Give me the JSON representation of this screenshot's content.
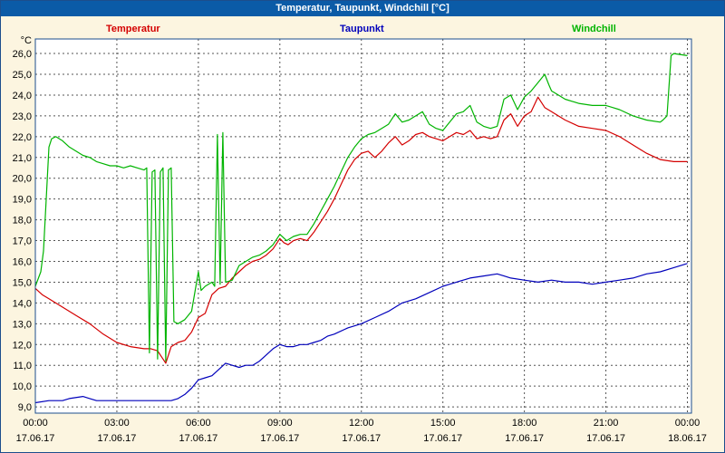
{
  "header": {
    "title": "Temperatur, Taupunkt, Windchill [°C]"
  },
  "colors": {
    "titlebar": "#0b5ba7",
    "background": "#fcf5e0",
    "plot_background": "#ffffff",
    "frame": "#1c4e8c",
    "grid": "#555555"
  },
  "chart_data": {
    "type": "line",
    "title": "Temperatur, Taupunkt, Windchill [°C]",
    "y_unit": "°C",
    "grid": true,
    "legend_position": "top",
    "ylim": [
      8.7,
      26.7
    ],
    "xlim_hours": [
      0,
      24.15
    ],
    "y_ticks": [
      26,
      25,
      24,
      23,
      22,
      21,
      20,
      19,
      18,
      17,
      16,
      15,
      14,
      13,
      12,
      11,
      10,
      9
    ],
    "x_ticks": [
      {
        "h": 0,
        "time": "00:00",
        "date": "17.06.17"
      },
      {
        "h": 3,
        "time": "03:00",
        "date": "17.06.17"
      },
      {
        "h": 6,
        "time": "06:00",
        "date": "17.06.17"
      },
      {
        "h": 9,
        "time": "09:00",
        "date": "17.06.17"
      },
      {
        "h": 12,
        "time": "12:00",
        "date": "17.06.17"
      },
      {
        "h": 15,
        "time": "15:00",
        "date": "17.06.17"
      },
      {
        "h": 18,
        "time": "18:00",
        "date": "17.06.17"
      },
      {
        "h": 21,
        "time": "21:00",
        "date": "17.06.17"
      },
      {
        "h": 24,
        "time": "00:00",
        "date": "18.06.17"
      }
    ],
    "series": [
      {
        "name": "Temperatur",
        "color": "#d40000",
        "points": [
          [
            0,
            14.7
          ],
          [
            0.25,
            14.4
          ],
          [
            0.5,
            14.2
          ],
          [
            0.75,
            14.0
          ],
          [
            1,
            13.8
          ],
          [
            1.5,
            13.4
          ],
          [
            2,
            13.0
          ],
          [
            2.5,
            12.5
          ],
          [
            3,
            12.1
          ],
          [
            3.5,
            11.9
          ],
          [
            4,
            11.8
          ],
          [
            4.25,
            11.8
          ],
          [
            4.5,
            11.7
          ],
          [
            4.6,
            11.5
          ],
          [
            4.75,
            11.2
          ],
          [
            4.8,
            11.1
          ],
          [
            5,
            11.9
          ],
          [
            5.25,
            12.1
          ],
          [
            5.5,
            12.2
          ],
          [
            5.75,
            12.6
          ],
          [
            6,
            13.3
          ],
          [
            6.25,
            13.5
          ],
          [
            6.5,
            14.4
          ],
          [
            6.75,
            14.7
          ],
          [
            7,
            14.8
          ],
          [
            7.25,
            15.2
          ],
          [
            7.5,
            15.5
          ],
          [
            7.75,
            15.8
          ],
          [
            8,
            16.0
          ],
          [
            8.25,
            16.1
          ],
          [
            8.5,
            16.3
          ],
          [
            8.75,
            16.6
          ],
          [
            9,
            17.1
          ],
          [
            9.15,
            16.9
          ],
          [
            9.3,
            16.8
          ],
          [
            9.5,
            17.0
          ],
          [
            9.75,
            17.1
          ],
          [
            10,
            17.0
          ],
          [
            10.25,
            17.4
          ],
          [
            10.5,
            17.9
          ],
          [
            10.75,
            18.4
          ],
          [
            11,
            19.0
          ],
          [
            11.25,
            19.7
          ],
          [
            11.5,
            20.4
          ],
          [
            11.75,
            20.9
          ],
          [
            12,
            21.2
          ],
          [
            12.25,
            21.3
          ],
          [
            12.5,
            21.0
          ],
          [
            12.75,
            21.3
          ],
          [
            13,
            21.7
          ],
          [
            13.25,
            22.0
          ],
          [
            13.5,
            21.6
          ],
          [
            13.75,
            21.8
          ],
          [
            14,
            22.1
          ],
          [
            14.25,
            22.2
          ],
          [
            14.5,
            22.0
          ],
          [
            14.75,
            21.9
          ],
          [
            15,
            21.8
          ],
          [
            15.25,
            22.0
          ],
          [
            15.5,
            22.2
          ],
          [
            15.75,
            22.1
          ],
          [
            16,
            22.3
          ],
          [
            16.25,
            21.9
          ],
          [
            16.5,
            22.0
          ],
          [
            16.75,
            21.9
          ],
          [
            17,
            22.0
          ],
          [
            17.25,
            22.8
          ],
          [
            17.5,
            23.1
          ],
          [
            17.75,
            22.5
          ],
          [
            18,
            23.0
          ],
          [
            18.25,
            23.2
          ],
          [
            18.5,
            23.9
          ],
          [
            18.65,
            23.6
          ],
          [
            18.75,
            23.4
          ],
          [
            19,
            23.2
          ],
          [
            19.25,
            23.0
          ],
          [
            19.5,
            22.8
          ],
          [
            20,
            22.5
          ],
          [
            20.5,
            22.4
          ],
          [
            21,
            22.3
          ],
          [
            21.5,
            22.0
          ],
          [
            22,
            21.6
          ],
          [
            22.5,
            21.2
          ],
          [
            23,
            20.9
          ],
          [
            23.5,
            20.8
          ],
          [
            24,
            20.8
          ]
        ]
      },
      {
        "name": "Taupunkt",
        "color": "#0000bb",
        "points": [
          [
            0,
            9.2
          ],
          [
            0.5,
            9.3
          ],
          [
            1,
            9.3
          ],
          [
            1.25,
            9.4
          ],
          [
            1.75,
            9.5
          ],
          [
            2,
            9.4
          ],
          [
            2.25,
            9.3
          ],
          [
            3,
            9.3
          ],
          [
            3.5,
            9.3
          ],
          [
            4,
            9.3
          ],
          [
            4.5,
            9.3
          ],
          [
            5,
            9.3
          ],
          [
            5.25,
            9.4
          ],
          [
            5.5,
            9.6
          ],
          [
            5.75,
            9.9
          ],
          [
            6,
            10.3
          ],
          [
            6.25,
            10.4
          ],
          [
            6.5,
            10.5
          ],
          [
            6.75,
            10.8
          ],
          [
            7,
            11.1
          ],
          [
            7.25,
            11.0
          ],
          [
            7.5,
            10.9
          ],
          [
            7.75,
            11.0
          ],
          [
            8,
            11.0
          ],
          [
            8.25,
            11.2
          ],
          [
            8.5,
            11.5
          ],
          [
            8.75,
            11.8
          ],
          [
            9,
            12.0
          ],
          [
            9.25,
            11.9
          ],
          [
            9.5,
            11.9
          ],
          [
            9.75,
            12.0
          ],
          [
            10,
            12.0
          ],
          [
            10.25,
            12.1
          ],
          [
            10.5,
            12.2
          ],
          [
            10.75,
            12.4
          ],
          [
            11,
            12.5
          ],
          [
            11.5,
            12.8
          ],
          [
            12,
            13.0
          ],
          [
            12.5,
            13.3
          ],
          [
            13,
            13.6
          ],
          [
            13.5,
            14.0
          ],
          [
            14,
            14.2
          ],
          [
            14.5,
            14.5
          ],
          [
            15,
            14.8
          ],
          [
            15.25,
            14.9
          ],
          [
            15.5,
            15.0
          ],
          [
            16,
            15.2
          ],
          [
            16.5,
            15.3
          ],
          [
            17,
            15.4
          ],
          [
            17.25,
            15.3
          ],
          [
            17.5,
            15.2
          ],
          [
            18,
            15.1
          ],
          [
            18.5,
            15.0
          ],
          [
            19,
            15.1
          ],
          [
            19.5,
            15.0
          ],
          [
            20,
            15.0
          ],
          [
            20.5,
            14.9
          ],
          [
            21,
            15.0
          ],
          [
            21.5,
            15.1
          ],
          [
            22,
            15.2
          ],
          [
            22.5,
            15.4
          ],
          [
            23,
            15.5
          ],
          [
            23.5,
            15.7
          ],
          [
            24,
            15.9
          ]
        ]
      },
      {
        "name": "Windchill",
        "color": "#00b400",
        "points": [
          [
            0,
            14.8
          ],
          [
            0.2,
            15.5
          ],
          [
            0.3,
            16.5
          ],
          [
            0.4,
            19.0
          ],
          [
            0.5,
            21.5
          ],
          [
            0.6,
            21.9
          ],
          [
            0.75,
            22.0
          ],
          [
            1,
            21.8
          ],
          [
            1.25,
            21.5
          ],
          [
            1.5,
            21.3
          ],
          [
            1.75,
            21.1
          ],
          [
            2,
            21.0
          ],
          [
            2.25,
            20.8
          ],
          [
            2.5,
            20.7
          ],
          [
            2.75,
            20.6
          ],
          [
            3,
            20.6
          ],
          [
            3.25,
            20.5
          ],
          [
            3.5,
            20.6
          ],
          [
            3.75,
            20.5
          ],
          [
            4,
            20.4
          ],
          [
            4.1,
            20.5
          ],
          [
            4.2,
            11.6
          ],
          [
            4.3,
            20.3
          ],
          [
            4.4,
            20.4
          ],
          [
            4.5,
            11.3
          ],
          [
            4.6,
            20.3
          ],
          [
            4.7,
            20.5
          ],
          [
            4.8,
            11.2
          ],
          [
            4.9,
            20.4
          ],
          [
            5,
            20.5
          ],
          [
            5.1,
            13.1
          ],
          [
            5.25,
            13.0
          ],
          [
            5.5,
            13.2
          ],
          [
            5.75,
            13.6
          ],
          [
            6,
            15.5
          ],
          [
            6.1,
            14.6
          ],
          [
            6.25,
            14.8
          ],
          [
            6.5,
            15.0
          ],
          [
            6.6,
            14.8
          ],
          [
            6.7,
            22.1
          ],
          [
            6.8,
            14.9
          ],
          [
            6.9,
            22.2
          ],
          [
            7,
            15.0
          ],
          [
            7.25,
            15.1
          ],
          [
            7.5,
            15.8
          ],
          [
            7.75,
            16.0
          ],
          [
            8,
            16.2
          ],
          [
            8.25,
            16.3
          ],
          [
            8.5,
            16.5
          ],
          [
            8.75,
            16.8
          ],
          [
            9,
            17.3
          ],
          [
            9.25,
            17.0
          ],
          [
            9.5,
            17.2
          ],
          [
            9.75,
            17.3
          ],
          [
            10,
            17.3
          ],
          [
            10.25,
            17.8
          ],
          [
            10.5,
            18.4
          ],
          [
            10.75,
            19.0
          ],
          [
            11,
            19.6
          ],
          [
            11.25,
            20.3
          ],
          [
            11.5,
            21.0
          ],
          [
            11.75,
            21.5
          ],
          [
            12,
            21.9
          ],
          [
            12.25,
            22.1
          ],
          [
            12.5,
            22.2
          ],
          [
            12.75,
            22.4
          ],
          [
            13,
            22.6
          ],
          [
            13.25,
            23.1
          ],
          [
            13.5,
            22.7
          ],
          [
            13.75,
            22.8
          ],
          [
            14,
            23.0
          ],
          [
            14.25,
            23.2
          ],
          [
            14.5,
            22.6
          ],
          [
            14.75,
            22.4
          ],
          [
            15,
            22.3
          ],
          [
            15.25,
            22.7
          ],
          [
            15.5,
            23.1
          ],
          [
            15.75,
            23.2
          ],
          [
            16,
            23.5
          ],
          [
            16.25,
            22.7
          ],
          [
            16.5,
            22.5
          ],
          [
            16.75,
            22.4
          ],
          [
            17,
            22.5
          ],
          [
            17.25,
            23.8
          ],
          [
            17.5,
            24.0
          ],
          [
            17.75,
            23.3
          ],
          [
            18,
            23.9
          ],
          [
            18.25,
            24.2
          ],
          [
            18.5,
            24.6
          ],
          [
            18.75,
            25.0
          ],
          [
            18.9,
            24.5
          ],
          [
            19,
            24.2
          ],
          [
            19.25,
            24.0
          ],
          [
            19.5,
            23.8
          ],
          [
            19.75,
            23.7
          ],
          [
            20,
            23.6
          ],
          [
            20.5,
            23.5
          ],
          [
            21,
            23.5
          ],
          [
            21.25,
            23.4
          ],
          [
            21.5,
            23.3
          ],
          [
            22,
            23.0
          ],
          [
            22.5,
            22.8
          ],
          [
            23,
            22.7
          ],
          [
            23.1,
            22.8
          ],
          [
            23.25,
            23.0
          ],
          [
            23.4,
            25.9
          ],
          [
            23.5,
            26.0
          ],
          [
            24,
            25.9
          ]
        ]
      }
    ]
  }
}
